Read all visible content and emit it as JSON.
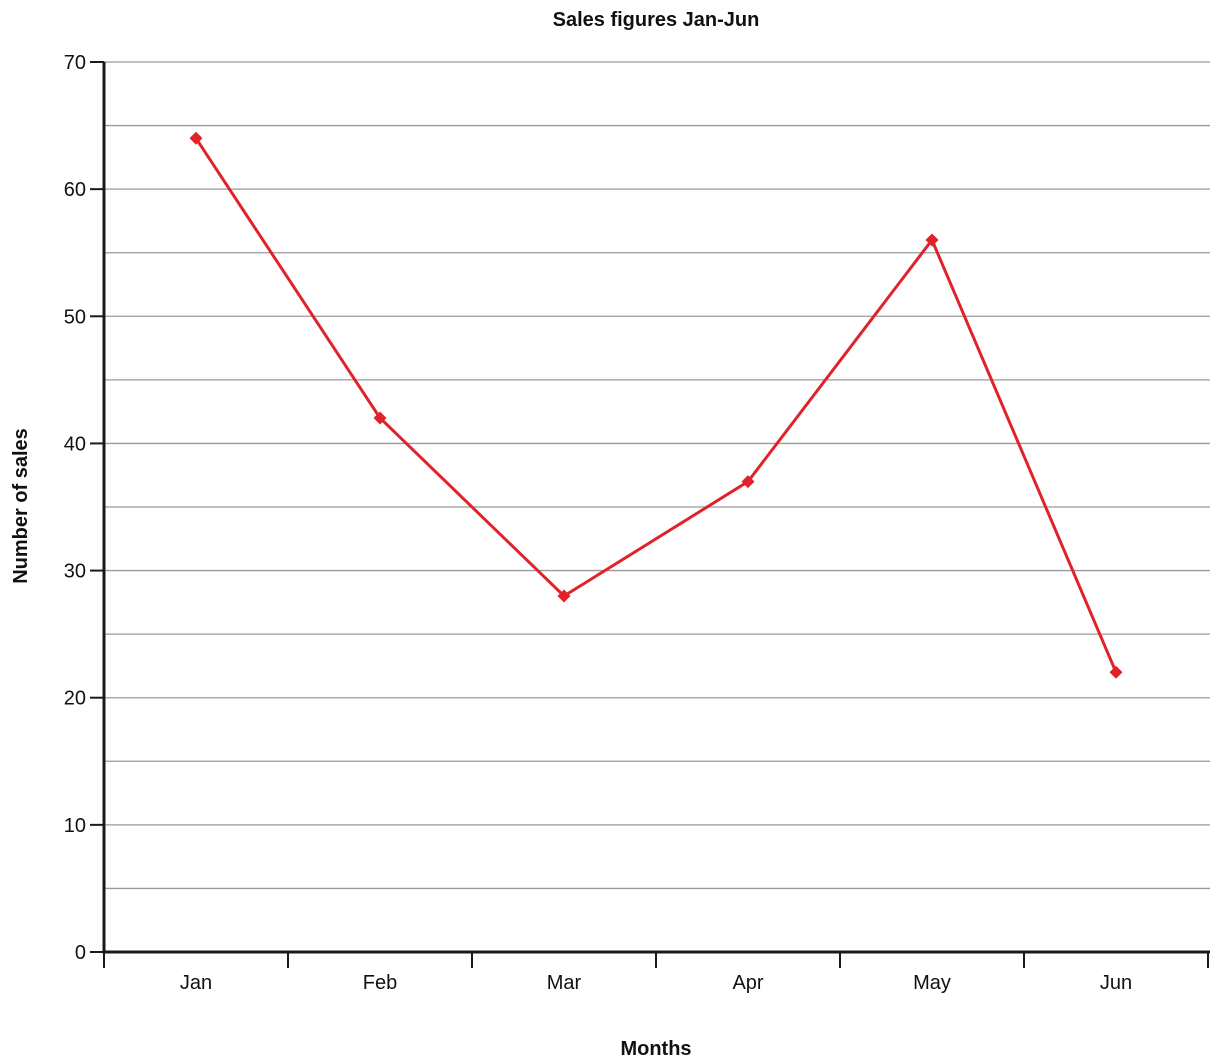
{
  "chart_data": {
    "type": "line",
    "title": "Sales figures Jan-Jun",
    "xlabel": "Months",
    "ylabel": "Number of sales",
    "categories": [
      "Jan",
      "Feb",
      "Mar",
      "Apr",
      "May",
      "Jun"
    ],
    "series": [
      {
        "values": [
          64,
          42,
          28,
          37,
          56,
          22
        ],
        "color": "#e0232b"
      }
    ],
    "ylim": [
      0,
      70
    ],
    "yticks": [
      0,
      10,
      20,
      30,
      40,
      50,
      60,
      70
    ],
    "ytick_labels": [
      "0",
      "10",
      "20",
      "30",
      "40",
      "50",
      "60",
      "70"
    ],
    "grid": true,
    "grid_step": 5,
    "marker": "diamond",
    "legend": "none"
  }
}
